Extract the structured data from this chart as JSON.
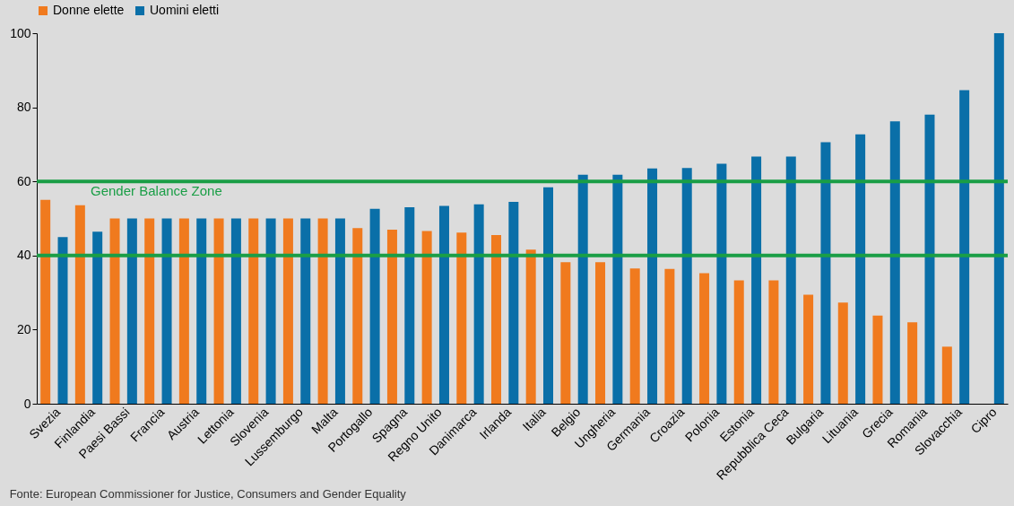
{
  "chart_data": {
    "type": "bar",
    "categories": [
      "Svezia",
      "Finlandia",
      "Paesi Bassi",
      "Francia",
      "Austria",
      "Lettonia",
      "Slovenia",
      "Lussemburgo",
      "Malta",
      "Portogallo",
      "Spagna",
      "Regno Unito",
      "Danimarca",
      "Irlanda",
      "Italia",
      "Belgio",
      "Ungheria",
      "Germania",
      "Croazia",
      "Polonia",
      "Estonia",
      "Repubblica Ceca",
      "Bulgaria",
      "Lituania",
      "Grecia",
      "Romania",
      "Slovacchia",
      "Cipro"
    ],
    "series": [
      {
        "name": "Donne elette",
        "color": "#f07a1e",
        "values": [
          55,
          53.6,
          50,
          50,
          50,
          50,
          50,
          50,
          50,
          47.4,
          47,
          46.6,
          46.2,
          45.5,
          41.6,
          38.2,
          38.2,
          36.5,
          36.4,
          35.2,
          33.3,
          33.3,
          29.4,
          27.3,
          23.8,
          22,
          15.4,
          0
        ]
      },
      {
        "name": "Uomini eletti",
        "color": "#0a6fa8",
        "values": [
          45,
          46.4,
          50,
          50,
          50,
          50,
          50,
          50,
          50,
          52.6,
          53,
          53.4,
          53.8,
          54.5,
          58.4,
          61.8,
          61.8,
          63.5,
          63.6,
          64.8,
          66.7,
          66.7,
          70.6,
          72.7,
          76.2,
          78,
          84.6,
          100
        ]
      }
    ],
    "ylim": [
      0,
      100
    ],
    "yticks": [
      0,
      20,
      40,
      60,
      80,
      100
    ],
    "legend": "top",
    "ref_lines": [
      {
        "axis": "y",
        "value": 60,
        "label": "Gender Balance Zone",
        "color": "#1a9e46"
      },
      {
        "axis": "y",
        "value": 40,
        "color": "#1a9e46"
      }
    ],
    "annotations": [
      "Fonte: European Commissioner for Justice, Consumers and Gender Equality"
    ]
  }
}
